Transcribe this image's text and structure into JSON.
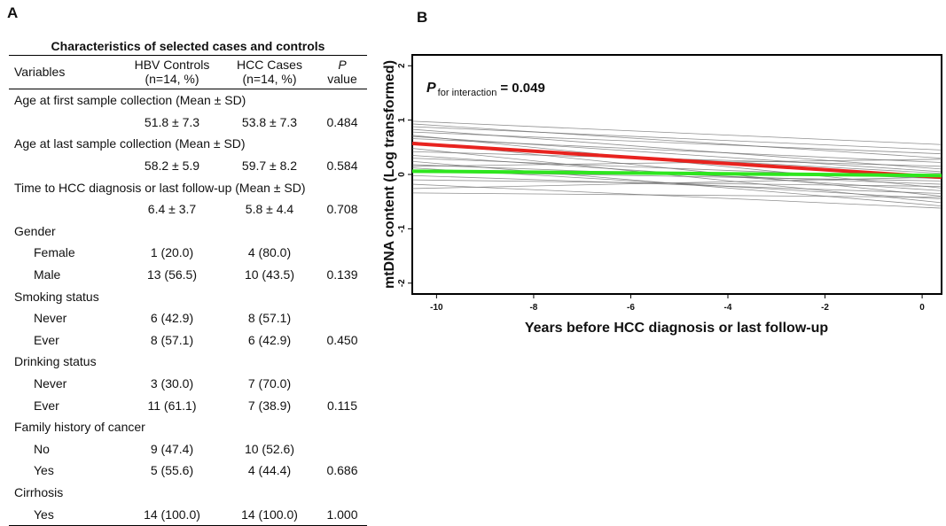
{
  "panels": {
    "a": "A",
    "b": "B"
  },
  "table": {
    "title": "Characteristics of selected cases and controls",
    "headers": {
      "variables": "Variables",
      "controls_line1": "HBV Controls",
      "controls_line2": "(n=14, %)",
      "cases_line1": "HCC Cases",
      "cases_line2": "(n=14, %)",
      "p_line1": "P",
      "p_line2": "value"
    },
    "rows": [
      {
        "label": "Age at first sample collection (Mean ± SD)",
        "indent": false,
        "controls": "",
        "cases": "",
        "p": ""
      },
      {
        "label": "",
        "indent": true,
        "controls": "51.8 ± 7.3",
        "cases": "53.8 ± 7.3",
        "p": "0.484"
      },
      {
        "label": "Age at last sample collection (Mean ± SD)",
        "indent": false,
        "controls": "",
        "cases": "",
        "p": ""
      },
      {
        "label": "",
        "indent": true,
        "controls": "58.2 ± 5.9",
        "cases": "59.7 ± 8.2",
        "p": "0.584"
      },
      {
        "label": "Time to HCC diagnosis or last follow-up (Mean ± SD)",
        "indent": false,
        "controls": "",
        "cases": "",
        "p": ""
      },
      {
        "label": "",
        "indent": true,
        "controls": "6.4 ± 3.7",
        "cases": "5.8 ± 4.4",
        "p": "0.708"
      },
      {
        "label": "Gender",
        "indent": false,
        "controls": "",
        "cases": "",
        "p": ""
      },
      {
        "label": "Female",
        "indent": true,
        "controls": "1 (20.0)",
        "cases": "4 (80.0)",
        "p": ""
      },
      {
        "label": "Male",
        "indent": true,
        "controls": "13 (56.5)",
        "cases": "10 (43.5)",
        "p": "0.139"
      },
      {
        "label": "Smoking status",
        "indent": false,
        "controls": "",
        "cases": "",
        "p": ""
      },
      {
        "label": "Never",
        "indent": true,
        "controls": "6 (42.9)",
        "cases": "8 (57.1)",
        "p": ""
      },
      {
        "label": "Ever",
        "indent": true,
        "controls": "8 (57.1)",
        "cases": "6 (42.9)",
        "p": "0.450"
      },
      {
        "label": "Drinking status",
        "indent": false,
        "controls": "",
        "cases": "",
        "p": ""
      },
      {
        "label": "Never",
        "indent": true,
        "controls": "3 (30.0)",
        "cases": "7 (70.0)",
        "p": ""
      },
      {
        "label": "Ever",
        "indent": true,
        "controls": "11 (61.1)",
        "cases": "7 (38.9)",
        "p": "0.115"
      },
      {
        "label": "Family history of cancer",
        "indent": false,
        "controls": "",
        "cases": "",
        "p": ""
      },
      {
        "label": "No",
        "indent": true,
        "controls": "9 (47.4)",
        "cases": "10 (52.6)",
        "p": ""
      },
      {
        "label": "Yes",
        "indent": true,
        "controls": "5 (55.6)",
        "cases": "4 (44.4)",
        "p": "0.686"
      },
      {
        "label": "Cirrhosis",
        "indent": false,
        "controls": "",
        "cases": "",
        "p": ""
      },
      {
        "label": "Yes",
        "indent": true,
        "controls": "14 (100.0)",
        "cases": "14 (100.0)",
        "p": "1.000"
      }
    ]
  },
  "chart_data": {
    "type": "line",
    "title": "",
    "xlabel": "Years before HCC diagnosis or last follow-up",
    "ylabel": "mtDNA content (Log transformed)",
    "xlim": [
      -10.5,
      0.4
    ],
    "ylim": [
      -2.2,
      2.2
    ],
    "xticks": [
      -10,
      -8,
      -6,
      -4,
      -2,
      0
    ],
    "yticks": [
      -2,
      -1,
      0,
      1,
      2
    ],
    "annotation": {
      "p_symbol": "P",
      "p_subscript": "for interaction",
      "p_value": "= 0.049"
    },
    "colors": {
      "cases_mean": "#e8231f",
      "controls_mean": "#2ee61e",
      "individual": "#6a6a6a"
    },
    "series": [
      {
        "x": [
          -10.5,
          0.4
        ],
        "y": [
          0.57,
          -0.05
        ],
        "color": "#e8231f",
        "emphasis": true
      },
      {
        "x": [
          -10.5,
          0.4
        ],
        "y": [
          0.06,
          -0.02
        ],
        "color": "#2ee61e",
        "emphasis": true
      },
      {
        "x": [
          -10.5,
          0.4
        ],
        "y": [
          0.98,
          0.55
        ],
        "color": "#6a6a6a"
      },
      {
        "x": [
          -10.5,
          0.4
        ],
        "y": [
          0.93,
          0.3
        ],
        "color": "#6a6a6a"
      },
      {
        "x": [
          -10.5,
          0.4
        ],
        "y": [
          0.88,
          0.45
        ],
        "color": "#6a6a6a"
      },
      {
        "x": [
          -10.5,
          0.4
        ],
        "y": [
          0.83,
          0.1
        ],
        "color": "#6a6a6a"
      },
      {
        "x": [
          -10.5,
          0.4
        ],
        "y": [
          0.78,
          0.38
        ],
        "color": "#6a6a6a"
      },
      {
        "x": [
          -10.5,
          0.4
        ],
        "y": [
          0.72,
          -0.25
        ],
        "color": "#6a6a6a"
      },
      {
        "x": [
          -10.5,
          0.4
        ],
        "y": [
          0.66,
          0.22
        ],
        "color": "#6a6a6a"
      },
      {
        "x": [
          -10.5,
          0.4
        ],
        "y": [
          0.6,
          -0.4
        ],
        "color": "#6a6a6a"
      },
      {
        "x": [
          -10.5,
          0.4
        ],
        "y": [
          0.55,
          0.02
        ],
        "color": "#6a6a6a"
      },
      {
        "x": [
          -10.5,
          0.4
        ],
        "y": [
          0.48,
          -0.52
        ],
        "color": "#6a6a6a"
      },
      {
        "x": [
          -10.5,
          0.4
        ],
        "y": [
          0.42,
          0.15
        ],
        "color": "#6a6a6a"
      },
      {
        "x": [
          -10.5,
          0.4
        ],
        "y": [
          0.35,
          -0.3
        ],
        "color": "#6a6a6a"
      },
      {
        "x": [
          -10.5,
          0.4
        ],
        "y": [
          0.3,
          -0.08
        ],
        "color": "#6a6a6a"
      },
      {
        "x": [
          -10.5,
          0.4
        ],
        "y": [
          0.24,
          -0.58
        ],
        "color": "#6a6a6a"
      },
      {
        "x": [
          -10.5,
          0.4
        ],
        "y": [
          0.18,
          -0.18
        ],
        "color": "#6a6a6a"
      },
      {
        "x": [
          -10.5,
          0.4
        ],
        "y": [
          0.12,
          -0.45
        ],
        "color": "#6a6a6a"
      },
      {
        "x": [
          -10.5,
          0.4
        ],
        "y": [
          0.05,
          -0.12
        ],
        "color": "#6a6a6a"
      },
      {
        "x": [
          -10.5,
          0.4
        ],
        "y": [
          -0.02,
          -0.35
        ],
        "color": "#6a6a6a"
      },
      {
        "x": [
          -10.5,
          0.4
        ],
        "y": [
          -0.1,
          -0.22
        ],
        "color": "#6a6a6a"
      },
      {
        "x": [
          -10.5,
          0.4
        ],
        "y": [
          -0.18,
          -0.62
        ],
        "color": "#6a6a6a"
      },
      {
        "x": [
          -10.5,
          0.4
        ],
        "y": [
          -0.26,
          -0.05
        ],
        "color": "#6a6a6a"
      },
      {
        "x": [
          -10.5,
          0.4
        ],
        "y": [
          -0.34,
          -0.42
        ],
        "color": "#6a6a6a"
      },
      {
        "x": [
          -10.5,
          0.4
        ],
        "y": [
          0.7,
          0.05
        ],
        "color": "#6a6a6a"
      },
      {
        "x": [
          -10.5,
          0.4
        ],
        "y": [
          0.15,
          0.28
        ],
        "color": "#6a6a6a"
      }
    ]
  }
}
